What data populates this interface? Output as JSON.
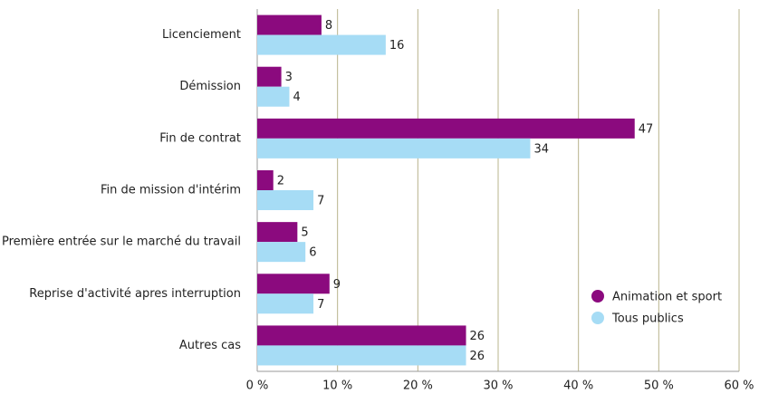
{
  "chart_data": {
    "type": "bar",
    "orientation": "horizontal",
    "categories": [
      "Licenciement",
      "Démission",
      "Fin de contrat",
      "Fin de mission d'intérim",
      "Première entrée sur le marché du travail",
      "Reprise d'activité apres interruption",
      "Autres cas"
    ],
    "series": [
      {
        "name": "Animation et sport",
        "color": "#8b0a7e",
        "values": [
          8,
          3,
          47,
          2,
          5,
          9,
          26
        ]
      },
      {
        "name": "Tous publics",
        "color": "#a6dcf5",
        "values": [
          16,
          4,
          34,
          7,
          6,
          7,
          26
        ]
      }
    ],
    "xlim": [
      0,
      60
    ],
    "xticks": [
      {
        "value": 0,
        "label": "0 %"
      },
      {
        "value": 10,
        "label": "10 %"
      },
      {
        "value": 20,
        "label": "20 %"
      },
      {
        "value": 30,
        "label": "30 %"
      },
      {
        "value": 40,
        "label": "40 %"
      },
      {
        "value": 50,
        "label": "50 %"
      },
      {
        "value": 60,
        "label": "60 %"
      }
    ],
    "grid": true,
    "legend": "lower right"
  }
}
